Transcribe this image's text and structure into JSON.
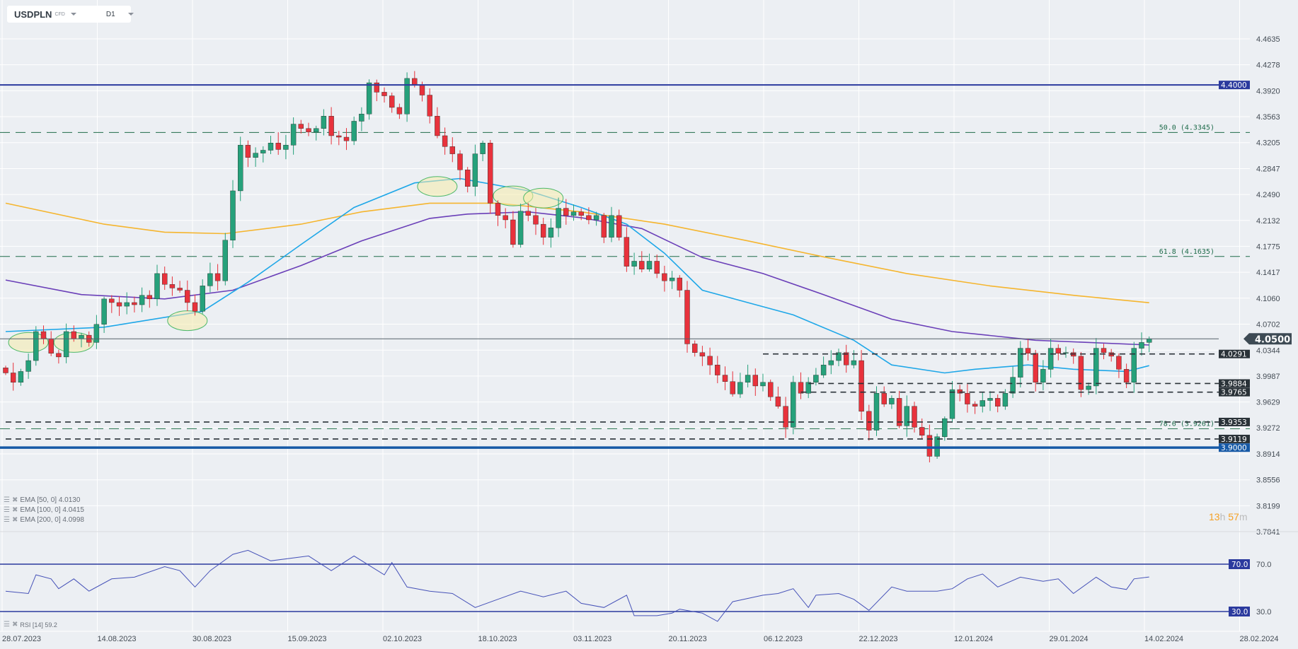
{
  "header": {
    "symbol": "USDPLN",
    "instrument_type": "CFD",
    "timeframe": "D1"
  },
  "legend": {
    "ema50": "EMA  [50,  0] 4.0130",
    "ema100": "EMA  [100,  0] 4.0415",
    "ema200": "EMA  [200,  0] 4.0998",
    "rsi": "RSI  [14]  59.2"
  },
  "timer": {
    "hours": "13",
    "h": "h",
    "minutes": "57",
    "m": "m"
  },
  "colors": {
    "up": "#26a17b",
    "down": "#e8323c",
    "ema50": "#1ea7e8",
    "ema100": "#6a3fb8",
    "ema200": "#f5b52e",
    "navy": "#2b3a9e",
    "blue": "#1659a6",
    "fib": "#1e6b4a",
    "dark": "#2a3238",
    "rsi": "#4652b8"
  },
  "chart_data": {
    "type": "candlestick",
    "title": "USDPLN CFD D1",
    "ylim": [
      3.7841,
      4.4635
    ],
    "y_ticks": [
      "4.4635",
      "4.4278",
      "4.3920",
      "4.3563",
      "4.3205",
      "4.2847",
      "4.2490",
      "4.2132",
      "4.1775",
      "4.1417",
      "4.1060",
      "4.0702",
      "4.0344",
      "3.9987",
      "3.9629",
      "3.9272",
      "3.8914",
      "3.8556",
      "3.8199",
      "3.7841"
    ],
    "x_ticks": [
      "28.07.2023",
      "14.08.2023",
      "30.08.2023",
      "15.09.2023",
      "02.10.2023",
      "18.10.2023",
      "03.11.2023",
      "20.11.2023",
      "06.12.2023",
      "22.12.2023",
      "12.01.2024",
      "29.01.2024",
      "14.02.2024",
      "28.02.2024"
    ],
    "start_open": 4.01,
    "closes": [
      4.003,
      3.99,
      4.005,
      4.02,
      4.06,
      4.05,
      4.03,
      4.025,
      4.06,
      4.05,
      4.055,
      4.045,
      4.07,
      4.105,
      4.1,
      4.095,
      4.1,
      4.097,
      4.11,
      4.105,
      4.14,
      4.125,
      4.12,
      4.117,
      4.1,
      4.088,
      4.123,
      4.14,
      4.13,
      4.186,
      4.254,
      4.317,
      4.3,
      4.306,
      4.31,
      4.32,
      4.311,
      4.317,
      4.346,
      4.34,
      4.335,
      4.34,
      4.357,
      4.33,
      4.328,
      4.323,
      4.35,
      4.36,
      4.403,
      4.39,
      4.385,
      4.369,
      4.36,
      4.409,
      4.4,
      4.386,
      4.357,
      4.33,
      4.315,
      4.305,
      4.283,
      4.26,
      4.305,
      4.32,
      4.237,
      4.22,
      4.214,
      4.18,
      4.226,
      4.22,
      4.208,
      4.19,
      4.203,
      4.23,
      4.22,
      4.225,
      4.22,
      4.214,
      4.22,
      4.19,
      4.22,
      4.19,
      4.15,
      4.157,
      4.146,
      4.157,
      4.14,
      4.13,
      4.134,
      4.117,
      4.043,
      4.031,
      4.026,
      4.014,
      4.0,
      3.991,
      3.974,
      3.99,
      4.0,
      3.985,
      3.99,
      3.97,
      3.957,
      3.928,
      3.99,
      3.975,
      3.99,
      4.0,
      4.014,
      4.02,
      4.031,
      4.014,
      4.02,
      3.95,
      3.924,
      3.975,
      3.96,
      3.968,
      3.93,
      3.957,
      3.928,
      3.917,
      3.888,
      3.915,
      3.94,
      3.98,
      3.975,
      3.96,
      3.957,
      3.965,
      3.968,
      3.957,
      3.975,
      3.997,
      4.037,
      4.03,
      3.99,
      4.008,
      4.037,
      4.03,
      4.031,
      4.026,
      3.98,
      3.985,
      4.037,
      4.031,
      4.026,
      4.008,
      3.99,
      4.037,
      4.045,
      4.05
    ],
    "ema50": [
      [
        0,
        4.06
      ],
      [
        13,
        4.066
      ],
      [
        26,
        4.088
      ],
      [
        32,
        4.128
      ],
      [
        39,
        4.18
      ],
      [
        46,
        4.231
      ],
      [
        54,
        4.265
      ],
      [
        60,
        4.271
      ],
      [
        69,
        4.254
      ],
      [
        76,
        4.231
      ],
      [
        82,
        4.208
      ],
      [
        87,
        4.168
      ],
      [
        92,
        4.117
      ],
      [
        98,
        4.1
      ],
      [
        104,
        4.083
      ],
      [
        112,
        4.048
      ],
      [
        117,
        4.014
      ],
      [
        124,
        4.003
      ],
      [
        128,
        4.008
      ],
      [
        135,
        4.014
      ],
      [
        141,
        4.008
      ],
      [
        148,
        4.005
      ],
      [
        151,
        4.013
      ]
    ],
    "ema100": [
      [
        0,
        4.131
      ],
      [
        10,
        4.111
      ],
      [
        21,
        4.105
      ],
      [
        30,
        4.117
      ],
      [
        39,
        4.151
      ],
      [
        47,
        4.185
      ],
      [
        56,
        4.216
      ],
      [
        61,
        4.222
      ],
      [
        69,
        4.225
      ],
      [
        76,
        4.217
      ],
      [
        84,
        4.202
      ],
      [
        92,
        4.162
      ],
      [
        100,
        4.14
      ],
      [
        108,
        4.111
      ],
      [
        117,
        4.077
      ],
      [
        125,
        4.06
      ],
      [
        136,
        4.048
      ],
      [
        151,
        4.0415
      ]
    ],
    "ema200": [
      [
        0,
        4.237
      ],
      [
        13,
        4.208
      ],
      [
        21,
        4.197
      ],
      [
        29,
        4.195
      ],
      [
        39,
        4.208
      ],
      [
        47,
        4.225
      ],
      [
        56,
        4.237
      ],
      [
        65,
        4.237
      ],
      [
        76,
        4.225
      ],
      [
        87,
        4.208
      ],
      [
        98,
        4.185
      ],
      [
        108,
        4.163
      ],
      [
        119,
        4.14
      ],
      [
        130,
        4.123
      ],
      [
        141,
        4.11
      ],
      [
        151,
        4.0998
      ]
    ],
    "levels": [
      {
        "value": 4.4,
        "label": "4.4000",
        "style": "solid-navy"
      },
      {
        "value": 4.05,
        "label": "4.0500",
        "style": "current"
      },
      {
        "value": 4.0291,
        "label": "4.0291",
        "style": "dash-black",
        "from": 100
      },
      {
        "value": 3.9884,
        "label": "3.9884",
        "style": "dash-black",
        "from": 106
      },
      {
        "value": 3.9765,
        "label": "3.9765",
        "style": "dash-black",
        "from": 105
      },
      {
        "value": 3.9353,
        "label": "3.9353",
        "style": "dash-black",
        "from": 0
      },
      {
        "value": 3.9119,
        "label": "3.9119",
        "style": "dash-black",
        "from": 0
      },
      {
        "value": 3.9,
        "label": "3.9000",
        "style": "solid-blue"
      }
    ],
    "fib_levels": [
      {
        "value": 4.3345,
        "label": "50.0 (4.3345)"
      },
      {
        "value": 4.1635,
        "label": "61.8 (4.1635)"
      },
      {
        "value": 3.9261,
        "label": "78.6 (3.9261)"
      }
    ],
    "highlights": [
      [
        3,
        4.045
      ],
      [
        9,
        4.045
      ],
      [
        24,
        4.075
      ],
      [
        57,
        4.26
      ],
      [
        67,
        4.247
      ],
      [
        71,
        4.244
      ]
    ],
    "rsi": {
      "ylim": [
        0,
        100
      ],
      "levels": [
        {
          "value": 70,
          "label": "70.0"
        },
        {
          "value": 30,
          "label": "30.0"
        }
      ],
      "tick_labels": [
        "70.0",
        "30.0"
      ],
      "points": [
        [
          0,
          47.2
        ],
        [
          3,
          45.2
        ],
        [
          4,
          61
        ],
        [
          6,
          57.6
        ],
        [
          7,
          49.3
        ],
        [
          9,
          57.6
        ],
        [
          11,
          47.2
        ],
        [
          14,
          57.6
        ],
        [
          17,
          59
        ],
        [
          21,
          67.9
        ],
        [
          23,
          64.5
        ],
        [
          25,
          50.7
        ],
        [
          27,
          64.5
        ],
        [
          30,
          78.3
        ],
        [
          32,
          81.7
        ],
        [
          35,
          72.8
        ],
        [
          40,
          76.9
        ],
        [
          43,
          64.5
        ],
        [
          46,
          76.9
        ],
        [
          50,
          61
        ],
        [
          51,
          71.4
        ],
        [
          53,
          50.7
        ],
        [
          56,
          47.2
        ],
        [
          59,
          45.2
        ],
        [
          62,
          33.4
        ],
        [
          65,
          40.3
        ],
        [
          68,
          47.2
        ],
        [
          71,
          42.4
        ],
        [
          74,
          47.2
        ],
        [
          76,
          36.9
        ],
        [
          79,
          33.4
        ],
        [
          82,
          43.8
        ],
        [
          83,
          26.5
        ],
        [
          86,
          26.5
        ],
        [
          88,
          28.6
        ],
        [
          89,
          32
        ],
        [
          92,
          28.6
        ],
        [
          94,
          21.7
        ],
        [
          96,
          38.3
        ],
        [
          100,
          43.8
        ],
        [
          102,
          45.2
        ],
        [
          104,
          49.3
        ],
        [
          106,
          33.4
        ],
        [
          107,
          43.8
        ],
        [
          110,
          45.2
        ],
        [
          112,
          40.3
        ],
        [
          114,
          31
        ],
        [
          117,
          50.7
        ],
        [
          119,
          47.2
        ],
        [
          123,
          47.2
        ],
        [
          125,
          49.3
        ],
        [
          127,
          57.6
        ],
        [
          129,
          61.7
        ],
        [
          131,
          50.7
        ],
        [
          134,
          59
        ],
        [
          137,
          55.5
        ],
        [
          139,
          57.6
        ],
        [
          141,
          45.2
        ],
        [
          144,
          59
        ],
        [
          146,
          50.7
        ],
        [
          148,
          48.6
        ],
        [
          149,
          57.6
        ],
        [
          151,
          59.2
        ]
      ]
    }
  }
}
